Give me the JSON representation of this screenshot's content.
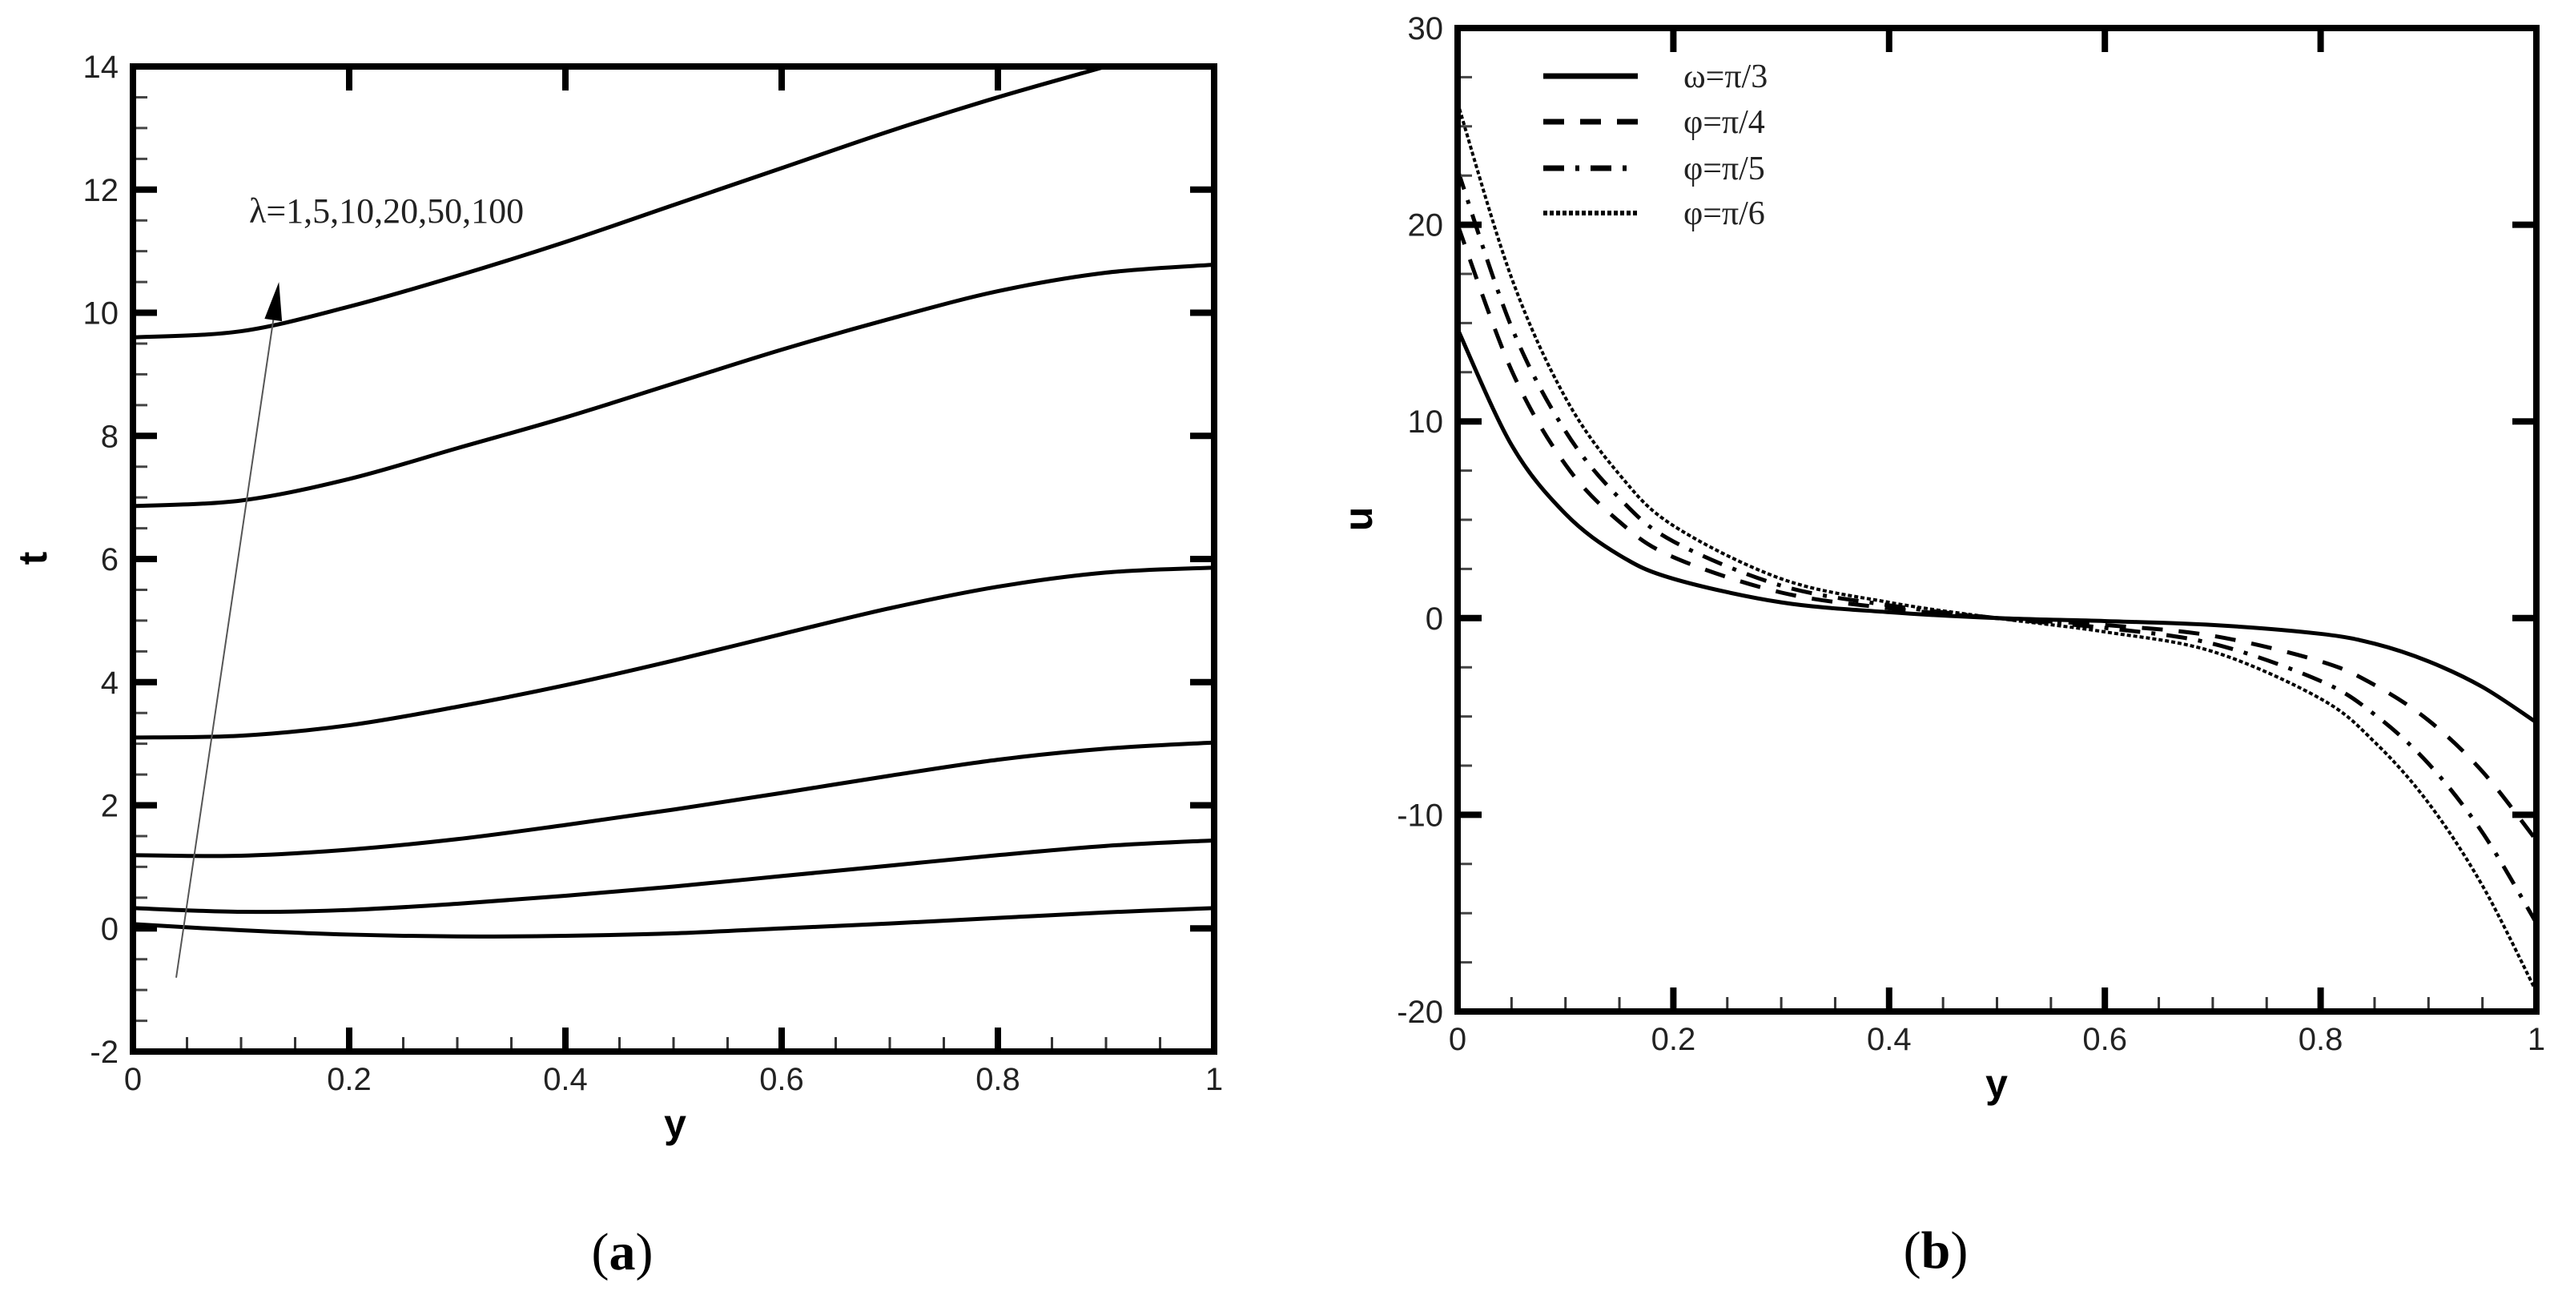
{
  "figure": {
    "panels": [
      {
        "id": "a",
        "caption_open": "(",
        "caption_letter": "a",
        "caption_close": ")"
      },
      {
        "id": "b",
        "caption_open": "(",
        "caption_letter": "b",
        "caption_close": ")"
      }
    ]
  },
  "chart_data": [
    {
      "type": "line",
      "panel": "a",
      "title": "",
      "xlabel": "y",
      "ylabel": "t",
      "xlim": [
        0,
        1
      ],
      "ylim": [
        -2,
        14
      ],
      "xticks": [
        0,
        0.2,
        0.4,
        0.6,
        0.8,
        1
      ],
      "xtick_labels": [
        "0",
        "0.2",
        "0.4",
        "0.6",
        "0.8",
        "1"
      ],
      "yticks": [
        -2,
        0,
        2,
        4,
        6,
        8,
        10,
        12,
        14
      ],
      "ytick_labels": [
        "-2",
        "0",
        "2",
        "4",
        "6",
        "8",
        "10",
        "12",
        "14"
      ],
      "grid": false,
      "annotation": {
        "text": "λ=1,5,10,20,50,100",
        "arrow_from": [
          0.04,
          -0.8
        ],
        "arrow_to": [
          0.135,
          10.5
        ]
      },
      "x": [
        0,
        0.1,
        0.2,
        0.3,
        0.4,
        0.5,
        0.6,
        0.7,
        0.8,
        0.9,
        1.0
      ],
      "series": [
        {
          "name": "λ=1",
          "style": "solid",
          "values": [
            0.07,
            -0.03,
            -0.1,
            -0.13,
            -0.12,
            -0.08,
            0.0,
            0.08,
            0.17,
            0.26,
            0.33
          ]
        },
        {
          "name": "λ=5",
          "style": "solid",
          "values": [
            0.33,
            0.27,
            0.3,
            0.4,
            0.53,
            0.68,
            0.85,
            1.02,
            1.19,
            1.34,
            1.43
          ]
        },
        {
          "name": "λ=10",
          "style": "solid",
          "values": [
            1.19,
            1.18,
            1.28,
            1.45,
            1.68,
            1.93,
            2.2,
            2.48,
            2.74,
            2.92,
            3.02
          ]
        },
        {
          "name": "λ=20",
          "style": "solid",
          "values": [
            3.1,
            3.13,
            3.3,
            3.6,
            3.95,
            4.35,
            4.78,
            5.2,
            5.55,
            5.78,
            5.86
          ]
        },
        {
          "name": "λ=50",
          "style": "solid",
          "values": [
            6.86,
            6.95,
            7.3,
            7.8,
            8.3,
            8.85,
            9.4,
            9.9,
            10.35,
            10.65,
            10.78
          ]
        },
        {
          "name": "λ=100",
          "style": "solid",
          "values": [
            9.6,
            9.7,
            10.1,
            10.6,
            11.15,
            11.75,
            12.35,
            12.95,
            13.5,
            14.0,
            null
          ]
        }
      ]
    },
    {
      "type": "line",
      "panel": "b",
      "title": "",
      "xlabel": "y",
      "ylabel": "u",
      "xlim": [
        0,
        1
      ],
      "ylim": [
        -20,
        30
      ],
      "xticks": [
        0,
        0.2,
        0.4,
        0.6,
        0.8,
        1
      ],
      "xtick_labels": [
        "0",
        "0.2",
        "0.4",
        "0.6",
        "0.8",
        "1"
      ],
      "yticks": [
        -20,
        -10,
        0,
        10,
        20,
        30
      ],
      "ytick_labels": [
        "-20",
        "-10",
        "0",
        "10",
        "20",
        "30"
      ],
      "grid": false,
      "legend_position": "upper left",
      "x": [
        0,
        0.05,
        0.1,
        0.15,
        0.2,
        0.3,
        0.4,
        0.5,
        0.6,
        0.7,
        0.8,
        0.85,
        0.9,
        0.95,
        1.0
      ],
      "series": [
        {
          "name": "ω=π/3",
          "style": "solid",
          "values": [
            14.7,
            8.8,
            5.3,
            3.2,
            2.0,
            0.8,
            0.3,
            0.0,
            -0.15,
            -0.35,
            -0.8,
            -1.3,
            -2.2,
            -3.5,
            -5.3
          ]
        },
        {
          "name": "φ=π/4",
          "style": "dashed",
          "values": [
            20.0,
            12.6,
            7.8,
            4.9,
            3.1,
            1.3,
            0.5,
            0.0,
            -0.35,
            -0.9,
            -2.2,
            -3.4,
            -5.2,
            -7.8,
            -11.3
          ]
        },
        {
          "name": "φ=π/5",
          "style": "dashdot",
          "values": [
            22.8,
            14.8,
            9.5,
            6.1,
            3.9,
            1.65,
            0.65,
            0.0,
            -0.5,
            -1.3,
            -3.2,
            -4.9,
            -7.4,
            -10.9,
            -15.5
          ]
        },
        {
          "name": "φ=π/6",
          "style": "dotted",
          "values": [
            26.2,
            17.3,
            11.2,
            7.3,
            4.7,
            2.0,
            0.8,
            0.0,
            -0.7,
            -1.7,
            -4.1,
            -6.3,
            -9.4,
            -13.6,
            -19.0
          ]
        }
      ]
    }
  ]
}
